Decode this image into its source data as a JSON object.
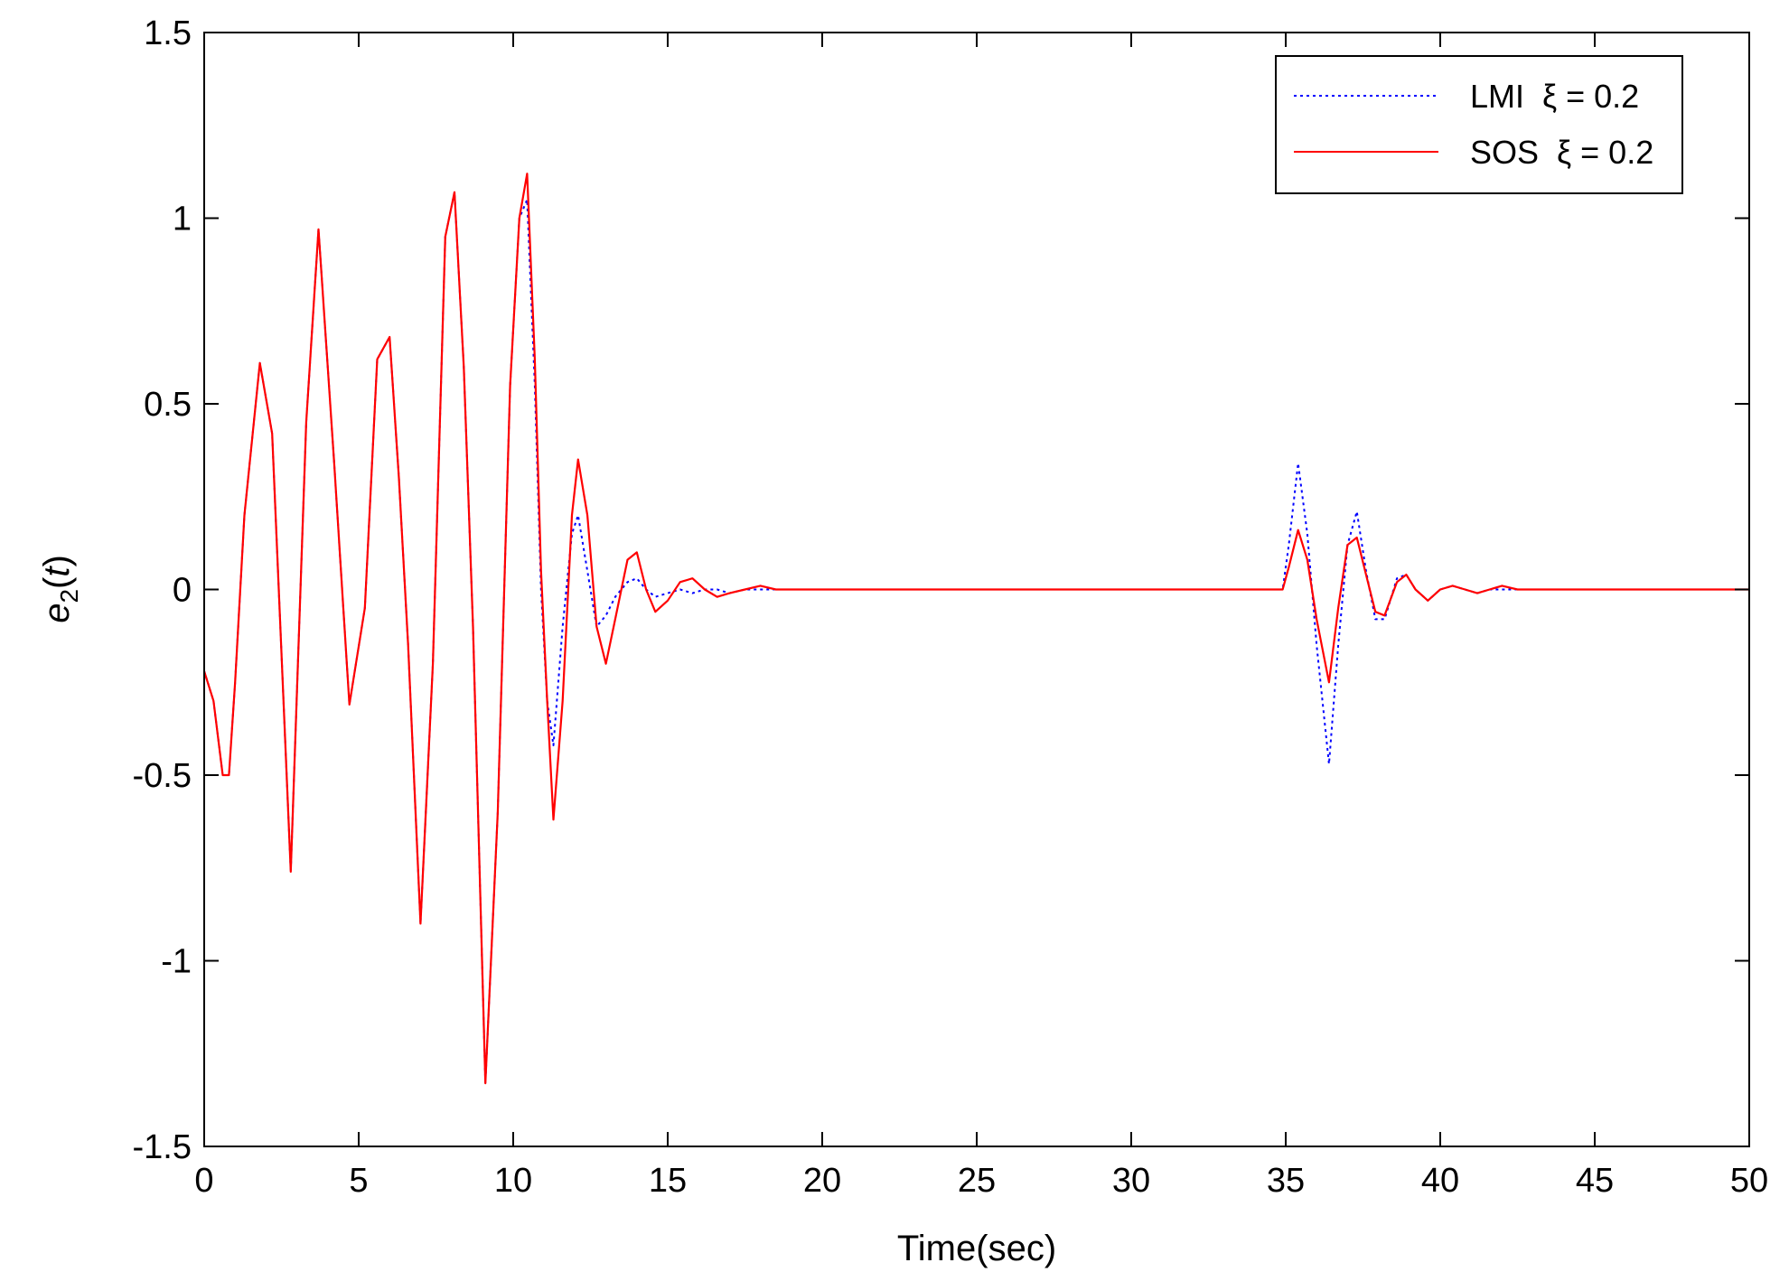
{
  "chart_data": {
    "type": "line",
    "title": "",
    "xlabel": "Time(sec)",
    "ylabel": {
      "main": "e",
      "sub": "2",
      "paren_open": "(",
      "var": "t",
      "paren_close": ")"
    },
    "xlim": [
      0,
      50
    ],
    "ylim": [
      -1.5,
      1.5
    ],
    "xticks": [
      0,
      5,
      10,
      15,
      20,
      25,
      30,
      35,
      40,
      45,
      50
    ],
    "yticks": [
      -1.5,
      -1,
      -0.5,
      0,
      0.5,
      1,
      1.5
    ],
    "xtick_labels": [
      "0",
      "5",
      "10",
      "15",
      "20",
      "25",
      "30",
      "35",
      "40",
      "45",
      "50"
    ],
    "ytick_labels": [
      "-1.5",
      "-1",
      "-0.5",
      "0",
      "0.5",
      "1",
      "1.5"
    ],
    "grid": false,
    "legend_position": "top-right",
    "series": [
      {
        "name": "LMI  ξ = 0.2",
        "color": "#0000ff",
        "style": "dotted",
        "x": [
          0,
          0.3,
          0.6,
          0.8,
          1.0,
          1.3,
          1.8,
          2.2,
          2.8,
          3.3,
          3.7,
          4.2,
          4.7,
          5.2,
          5.6,
          6.0,
          6.3,
          6.6,
          7.0,
          7.4,
          7.8,
          8.1,
          8.4,
          8.7,
          9.1,
          9.5,
          9.9,
          10.2,
          10.45,
          10.7,
          10.9,
          11.1,
          11.3,
          11.6,
          11.9,
          12.1,
          12.4,
          12.7,
          13.0,
          13.3,
          13.7,
          14.0,
          14.3,
          14.6,
          15.0,
          15.4,
          15.8,
          16.2,
          16.6,
          17.0,
          17.5,
          18.0,
          18.5,
          20,
          25,
          30,
          34.9,
          35.1,
          35.4,
          35.7,
          36.0,
          36.4,
          36.7,
          37.0,
          37.3,
          37.6,
          37.9,
          38.2,
          38.6,
          38.9,
          39.2,
          39.6,
          40.0,
          40.4,
          40.8,
          41.2,
          41.6,
          42.0,
          42.5,
          45,
          50
        ],
        "y": [
          -0.22,
          -0.3,
          -0.5,
          -0.5,
          -0.25,
          0.2,
          0.61,
          0.42,
          -0.76,
          0.45,
          0.97,
          0.35,
          -0.31,
          -0.05,
          0.62,
          0.68,
          0.3,
          -0.15,
          -0.9,
          -0.2,
          0.95,
          1.07,
          0.6,
          -0.1,
          -1.33,
          -0.6,
          0.55,
          1.0,
          1.05,
          0.55,
          0.0,
          -0.3,
          -0.42,
          -0.1,
          0.15,
          0.2,
          0.05,
          -0.1,
          -0.07,
          -0.02,
          0.02,
          0.03,
          0.0,
          -0.02,
          -0.01,
          0.0,
          -0.01,
          0.0,
          0.0,
          -0.01,
          0.0,
          0.0,
          0.0,
          0.0,
          0.0,
          0.0,
          0.0,
          0.12,
          0.34,
          0.15,
          -0.15,
          -0.47,
          -0.15,
          0.12,
          0.21,
          0.05,
          -0.08,
          -0.08,
          0.03,
          0.04,
          0.0,
          -0.03,
          0.0,
          0.01,
          0.0,
          -0.01,
          0.0,
          0.0,
          0.0,
          0.0,
          0.0
        ]
      },
      {
        "name": "SOS  ξ = 0.2",
        "color": "#ff0000",
        "style": "solid",
        "x": [
          0,
          0.3,
          0.6,
          0.8,
          1.0,
          1.3,
          1.8,
          2.2,
          2.8,
          3.3,
          3.7,
          4.2,
          4.7,
          5.2,
          5.6,
          6.0,
          6.3,
          6.6,
          7.0,
          7.4,
          7.8,
          8.1,
          8.4,
          8.7,
          9.1,
          9.5,
          9.9,
          10.2,
          10.45,
          10.7,
          10.9,
          11.1,
          11.3,
          11.6,
          11.9,
          12.1,
          12.4,
          12.7,
          13.0,
          13.3,
          13.7,
          14.0,
          14.3,
          14.6,
          15.0,
          15.4,
          15.8,
          16.2,
          16.6,
          17.0,
          17.5,
          18.0,
          18.5,
          20,
          25,
          30,
          34.9,
          35.1,
          35.4,
          35.7,
          36.0,
          36.4,
          36.7,
          37.0,
          37.3,
          37.6,
          37.9,
          38.2,
          38.6,
          38.9,
          39.2,
          39.6,
          40.0,
          40.4,
          40.8,
          41.2,
          41.6,
          42.0,
          42.5,
          45,
          50
        ],
        "y": [
          -0.22,
          -0.3,
          -0.5,
          -0.5,
          -0.25,
          0.2,
          0.61,
          0.42,
          -0.76,
          0.45,
          0.97,
          0.35,
          -0.31,
          -0.05,
          0.62,
          0.68,
          0.3,
          -0.15,
          -0.9,
          -0.2,
          0.95,
          1.07,
          0.6,
          -0.1,
          -1.33,
          -0.6,
          0.55,
          1.0,
          1.12,
          0.62,
          0.05,
          -0.3,
          -0.62,
          -0.3,
          0.2,
          0.35,
          0.2,
          -0.1,
          -0.2,
          -0.08,
          0.08,
          0.1,
          0.0,
          -0.06,
          -0.03,
          0.02,
          0.03,
          0.0,
          -0.02,
          -0.01,
          0.0,
          0.01,
          0.0,
          0.0,
          0.0,
          0.0,
          0.0,
          0.06,
          0.16,
          0.08,
          -0.08,
          -0.25,
          -0.05,
          0.12,
          0.14,
          0.04,
          -0.06,
          -0.07,
          0.02,
          0.04,
          0.0,
          -0.03,
          0.0,
          0.01,
          0.0,
          -0.01,
          0.0,
          0.01,
          0.0,
          0.0,
          0.0
        ]
      }
    ]
  }
}
